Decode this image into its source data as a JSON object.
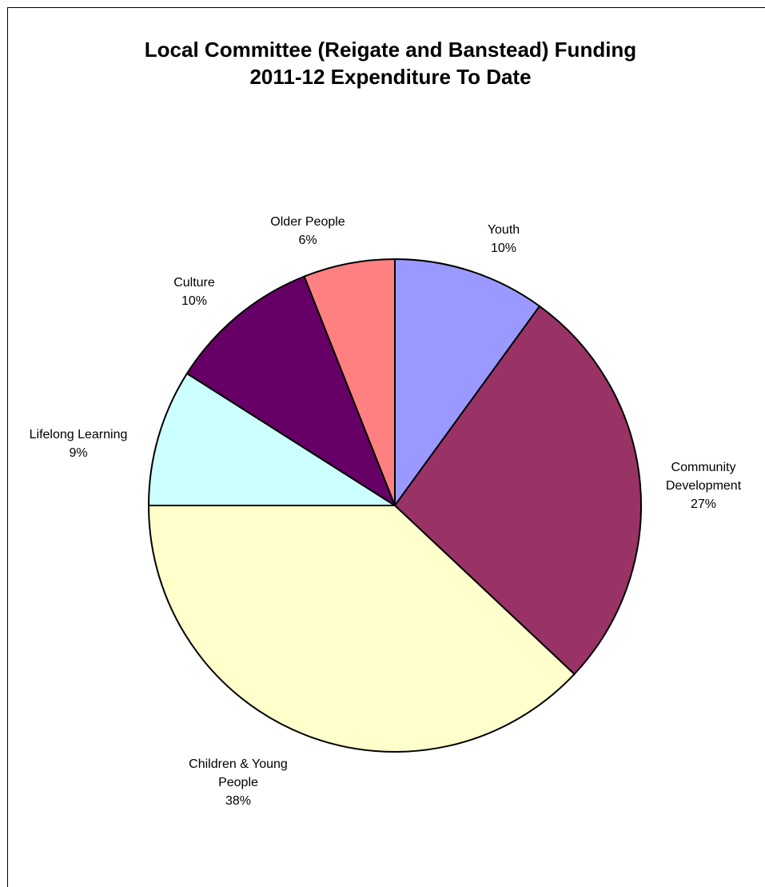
{
  "chart_data": {
    "type": "pie",
    "title_lines": [
      "Local Committee (Reigate and Banstead) Funding",
      "2011-12 Expenditure To Date"
    ],
    "slices": [
      {
        "name": "Youth",
        "label_lines": [
          "Youth"
        ],
        "percent_label": "10%",
        "value": 10.0,
        "color": "#9999FF"
      },
      {
        "name": "Community Development",
        "label_lines": [
          "Community",
          "Development"
        ],
        "percent_label": "27%",
        "value": 27.0,
        "color": "#993366"
      },
      {
        "name": "Children & Young People",
        "label_lines": [
          "Children & Young",
          "People"
        ],
        "percent_label": "38%",
        "value": 38.0,
        "color": "#FFFFCC"
      },
      {
        "name": "Lifelong Learning",
        "label_lines": [
          "Lifelong Learning"
        ],
        "percent_label": "9%",
        "value": 9.0,
        "color": "#CCFFFF"
      },
      {
        "name": "Culture",
        "label_lines": [
          "Culture"
        ],
        "percent_label": "10%",
        "value": 10.0,
        "color": "#660066"
      },
      {
        "name": "Older People",
        "label_lines": [
          "Older People"
        ],
        "percent_label": "6%",
        "value": 6.0,
        "color": "#FF8080"
      }
    ],
    "start": "12 o'clock",
    "direction": "clockwise",
    "legend": "none"
  }
}
